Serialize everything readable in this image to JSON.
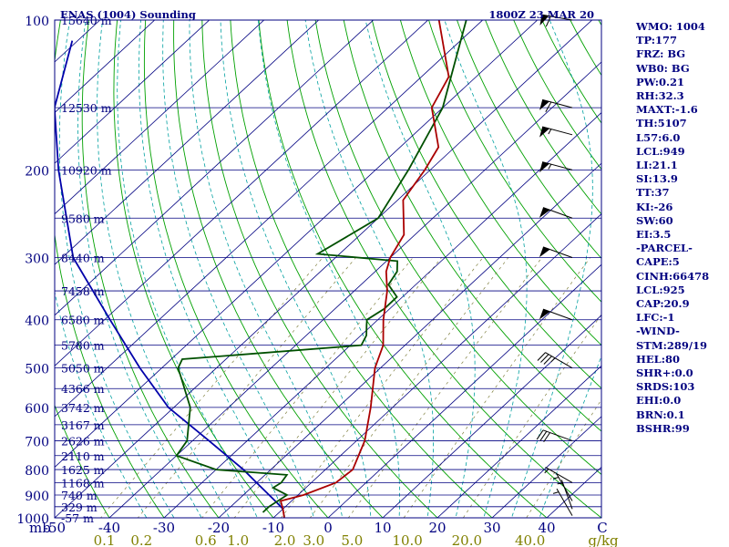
{
  "header": {
    "title": "ENAS (1004) Sounding",
    "datetime": "1800Z 23 MAR 20"
  },
  "colors": {
    "background": "#ffffff",
    "frame": "#000080",
    "isobar": "#000080",
    "isotherm": "#000080",
    "dry_adiabat": "#00a000",
    "moist_adiabat": "#00a0a0",
    "mixing_ratio": "#808040",
    "temperature": "#aa0000",
    "dewpoint": "#005000",
    "parcel": "#0000aa",
    "wind_barb": "#000000",
    "mixing_ratio_label": "#808000"
  },
  "chart_data": {
    "type": "skew-t",
    "x_axis_unit": "C",
    "y_axis_unit": "mb",
    "mixing_ratio_unit": "g/kg",
    "ylim": [
      1000,
      100
    ],
    "xlim": [
      -50,
      50
    ],
    "pressure_ticks": [
      100,
      200,
      300,
      400,
      500,
      600,
      700,
      800,
      900,
      1000
    ],
    "temperature_ticks": [
      -50,
      -40,
      -30,
      -20,
      -10,
      0,
      10,
      20,
      30,
      40
    ],
    "temperature_tick_labels": [
      "-50",
      "-40",
      "-30",
      "-20",
      "-10",
      "0",
      "10",
      "20",
      "30",
      "40"
    ],
    "mixing_ratio_values": [
      0.1,
      0.2,
      0.6,
      1.0,
      2.0,
      3.0,
      5.0,
      10.0,
      20.0,
      40.0
    ],
    "mixing_ratio_labels": [
      "0.1",
      "0.2",
      "0.6",
      "1.0",
      "2.0",
      "3.0",
      "5.0",
      "10.0",
      "20.0",
      "40.0"
    ],
    "height_levels": [
      {
        "p": 100,
        "label": "15640 m"
      },
      {
        "p": 150,
        "label": "12530 m"
      },
      {
        "p": 200,
        "label": "10920 m"
      },
      {
        "p": 250,
        "label": "9580 m"
      },
      {
        "p": 300,
        "label": "8440 m"
      },
      {
        "p": 350,
        "label": "7458 m"
      },
      {
        "p": 400,
        "label": "6580 m"
      },
      {
        "p": 450,
        "label": "5780 m"
      },
      {
        "p": 500,
        "label": "5050 m"
      },
      {
        "p": 550,
        "label": "4366 m"
      },
      {
        "p": 600,
        "label": "3742 m"
      },
      {
        "p": 650,
        "label": "3167 m"
      },
      {
        "p": 700,
        "label": "2626 m"
      },
      {
        "p": 750,
        "label": "2110 m"
      },
      {
        "p": 800,
        "label": "1625 m"
      },
      {
        "p": 850,
        "label": "1168 m"
      },
      {
        "p": 900,
        "label": "740 m"
      },
      {
        "p": 950,
        "label": "329 m"
      },
      {
        "p": 1000,
        "label": "-57 m"
      }
    ],
    "temperature_profile": [
      {
        "p": 1000,
        "t": -8
      },
      {
        "p": 960,
        "t": -10
      },
      {
        "p": 925,
        "t": -12
      },
      {
        "p": 900,
        "t": -9
      },
      {
        "p": 850,
        "t": -5.5
      },
      {
        "p": 800,
        "t": -5
      },
      {
        "p": 700,
        "t": -8.5
      },
      {
        "p": 600,
        "t": -14
      },
      {
        "p": 500,
        "t": -21
      },
      {
        "p": 450,
        "t": -24
      },
      {
        "p": 400,
        "t": -29
      },
      {
        "p": 350,
        "t": -34
      },
      {
        "p": 320,
        "t": -38
      },
      {
        "p": 300,
        "t": -40
      },
      {
        "p": 270,
        "t": -42
      },
      {
        "p": 230,
        "t": -49
      },
      {
        "p": 200,
        "t": -51
      },
      {
        "p": 180,
        "t": -53
      },
      {
        "p": 150,
        "t": -62
      },
      {
        "p": 130,
        "t": -65
      },
      {
        "p": 100,
        "t": -78
      }
    ],
    "dewpoint_profile": [
      {
        "p": 975,
        "t": -13
      },
      {
        "p": 950,
        "t": -13
      },
      {
        "p": 900,
        "t": -12
      },
      {
        "p": 870,
        "t": -16
      },
      {
        "p": 850,
        "t": -15.5
      },
      {
        "p": 820,
        "t": -16
      },
      {
        "p": 800,
        "t": -30
      },
      {
        "p": 750,
        "t": -40
      },
      {
        "p": 700,
        "t": -41
      },
      {
        "p": 600,
        "t": -47
      },
      {
        "p": 500,
        "t": -57
      },
      {
        "p": 480,
        "t": -58
      },
      {
        "p": 450,
        "t": -28
      },
      {
        "p": 430,
        "t": -29
      },
      {
        "p": 410,
        "t": -31
      },
      {
        "p": 400,
        "t": -32
      },
      {
        "p": 380,
        "t": -31
      },
      {
        "p": 360,
        "t": -31
      },
      {
        "p": 340,
        "t": -35
      },
      {
        "p": 320,
        "t": -36
      },
      {
        "p": 305,
        "t": -38
      },
      {
        "p": 295,
        "t": -54
      },
      {
        "p": 250,
        "t": -50
      },
      {
        "p": 200,
        "t": -54
      },
      {
        "p": 150,
        "t": -60
      },
      {
        "p": 100,
        "t": -73
      }
    ],
    "parcel_profile": [
      {
        "p": 960,
        "t": -10
      },
      {
        "p": 925,
        "t": -13
      },
      {
        "p": 850,
        "t": -20
      },
      {
        "p": 800,
        "t": -25
      },
      {
        "p": 700,
        "t": -37
      },
      {
        "p": 600,
        "t": -51
      },
      {
        "p": 500,
        "t": -64
      },
      {
        "p": 400,
        "t": -79
      },
      {
        "p": 300,
        "t": -98
      },
      {
        "p": 200,
        "t": -118
      },
      {
        "p": 150,
        "t": -131
      },
      {
        "p": 110,
        "t": -141
      }
    ],
    "wind_barbs": [
      {
        "p": 100,
        "dir": 280,
        "speed_kt": 60
      },
      {
        "p": 150,
        "dir": 285,
        "speed_kt": 60
      },
      {
        "p": 170,
        "dir": 285,
        "speed_kt": 55
      },
      {
        "p": 200,
        "dir": 285,
        "speed_kt": 55
      },
      {
        "p": 250,
        "dir": 290,
        "speed_kt": 50
      },
      {
        "p": 300,
        "dir": 290,
        "speed_kt": 50
      },
      {
        "p": 400,
        "dir": 290,
        "speed_kt": 50
      },
      {
        "p": 500,
        "dir": 300,
        "speed_kt": 35
      },
      {
        "p": 700,
        "dir": 290,
        "speed_kt": 30
      },
      {
        "p": 850,
        "dir": 300,
        "speed_kt": 5
      },
      {
        "p": 925,
        "dir": 330,
        "speed_kt": 5
      },
      {
        "p": 960,
        "dir": 340,
        "speed_kt": 5
      },
      {
        "p": 990,
        "dir": 330,
        "speed_kt": 5
      }
    ]
  },
  "indices": [
    "WMO: 1004",
    "TP:177",
    "FRZ: BG",
    "WB0: BG",
    "PW:0.21",
    "RH:32.3",
    "MAXT:-1.6",
    "TH:5107",
    "L57:6.0",
    "LCL:949",
    "LI:21.1",
    "SI:13.9",
    "TT:37",
    "KI:-26",
    "SW:60",
    "EI:3.5",
    "-PARCEL-",
    "CAPE:5",
    "CINH:66478",
    "LCL:925",
    "CAP:20.9",
    "LFC:-1",
    "-WIND-",
    "STM:289/19",
    "HEL:80",
    "SHR+:0.0",
    "SRDS:103",
    "EHI:0.0",
    "BRN:0.1",
    "BSHR:99"
  ]
}
